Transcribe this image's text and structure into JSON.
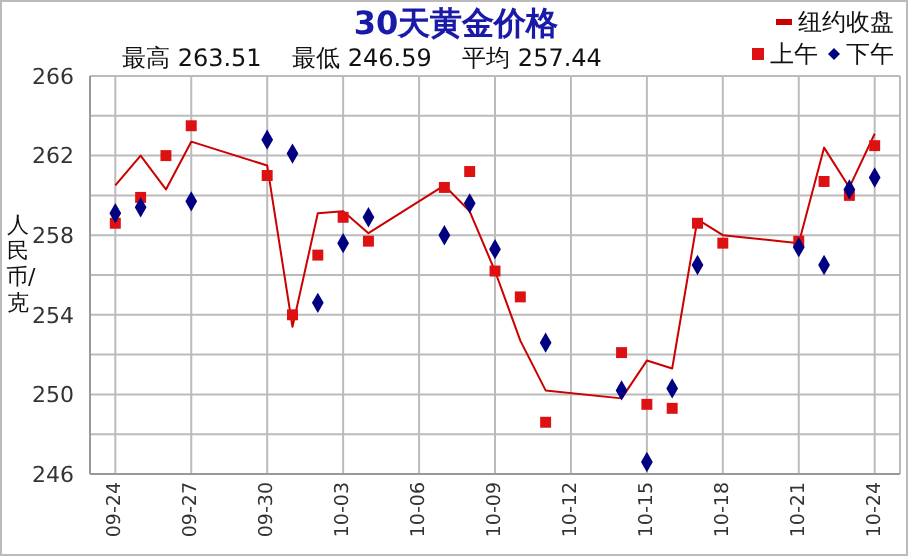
{
  "chart_data": {
    "type": "line",
    "title": "30天黄金价格",
    "subtitle": "最高 263.51    最低 246.59    平均 257.44",
    "ylabel": "人民币/克",
    "x": [
      "--09-24",
      "--09-25",
      "--09-26",
      "--09-27",
      "--09-30",
      "--10-01",
      "--10-02",
      "--10-03",
      "--10-04",
      "--10-07",
      "--10-08",
      "--10-09",
      "--10-10",
      "--10-11",
      "--10-14",
      "--10-15",
      "--10-16",
      "--10-17",
      "--10-18",
      "--10-21",
      "--10-22",
      "--10-23",
      "--10-24"
    ],
    "series": [
      {
        "name": "纽约收盘",
        "color": "#cc0000",
        "values": [
          260.5,
          262.0,
          260.3,
          262.7,
          261.5,
          253.4,
          259.1,
          259.2,
          258.1,
          260.5,
          259.2,
          256.2,
          252.7,
          250.2,
          249.8,
          251.7,
          251.3,
          258.8,
          258.0,
          257.6,
          262.4,
          260.4,
          263.1
        ]
      },
      {
        "name": "上午",
        "type": "scatter",
        "marker": "square",
        "color": "#dd1111",
        "values": [
          258.6,
          259.9,
          262.0,
          263.5,
          261.0,
          254.0,
          257.0,
          258.9,
          257.7,
          260.4,
          261.2,
          256.2,
          254.9,
          248.6,
          252.1,
          249.5,
          249.3,
          258.6,
          257.6,
          257.7,
          260.7,
          260.0,
          262.5
        ]
      },
      {
        "name": "下午",
        "type": "scatter",
        "marker": "diamond",
        "color": "#000080",
        "values": [
          259.1,
          259.4,
          null,
          259.7,
          262.8,
          262.1,
          254.6,
          257.6,
          258.9,
          258.0,
          259.6,
          257.3,
          null,
          252.6,
          250.2,
          246.6,
          250.3,
          256.5,
          null,
          257.4,
          256.5,
          260.3,
          260.9
        ]
      }
    ],
    "xlim": [
      "--09-23",
      "--10-25"
    ],
    "xticks": [
      {
        "value": "--09-24",
        "label": "09-24"
      },
      {
        "value": "--09-27",
        "label": "09-27"
      },
      {
        "value": "--09-30",
        "label": "09-30"
      },
      {
        "value": "--10-03",
        "label": "10-03"
      },
      {
        "value": "--10-06",
        "label": "10-06"
      },
      {
        "value": "--10-09",
        "label": "10-09"
      },
      {
        "value": "--10-12",
        "label": "10-12"
      },
      {
        "value": "--10-15",
        "label": "10-15"
      },
      {
        "value": "--10-18",
        "label": "10-18"
      },
      {
        "value": "--10-21",
        "label": "10-21"
      },
      {
        "value": "--10-24",
        "label": "10-24"
      }
    ],
    "ylim": [
      246,
      266
    ],
    "yticks": [
      246,
      {
        "value": 248,
        "label": null
      },
      250,
      {
        "value": 252,
        "label": null
      },
      254,
      {
        "value": 256,
        "label": null
      },
      258,
      {
        "value": 260,
        "label": null
      },
      262,
      {
        "value": 264,
        "label": null
      },
      266
    ],
    "grid": true,
    "legend": "top right"
  }
}
